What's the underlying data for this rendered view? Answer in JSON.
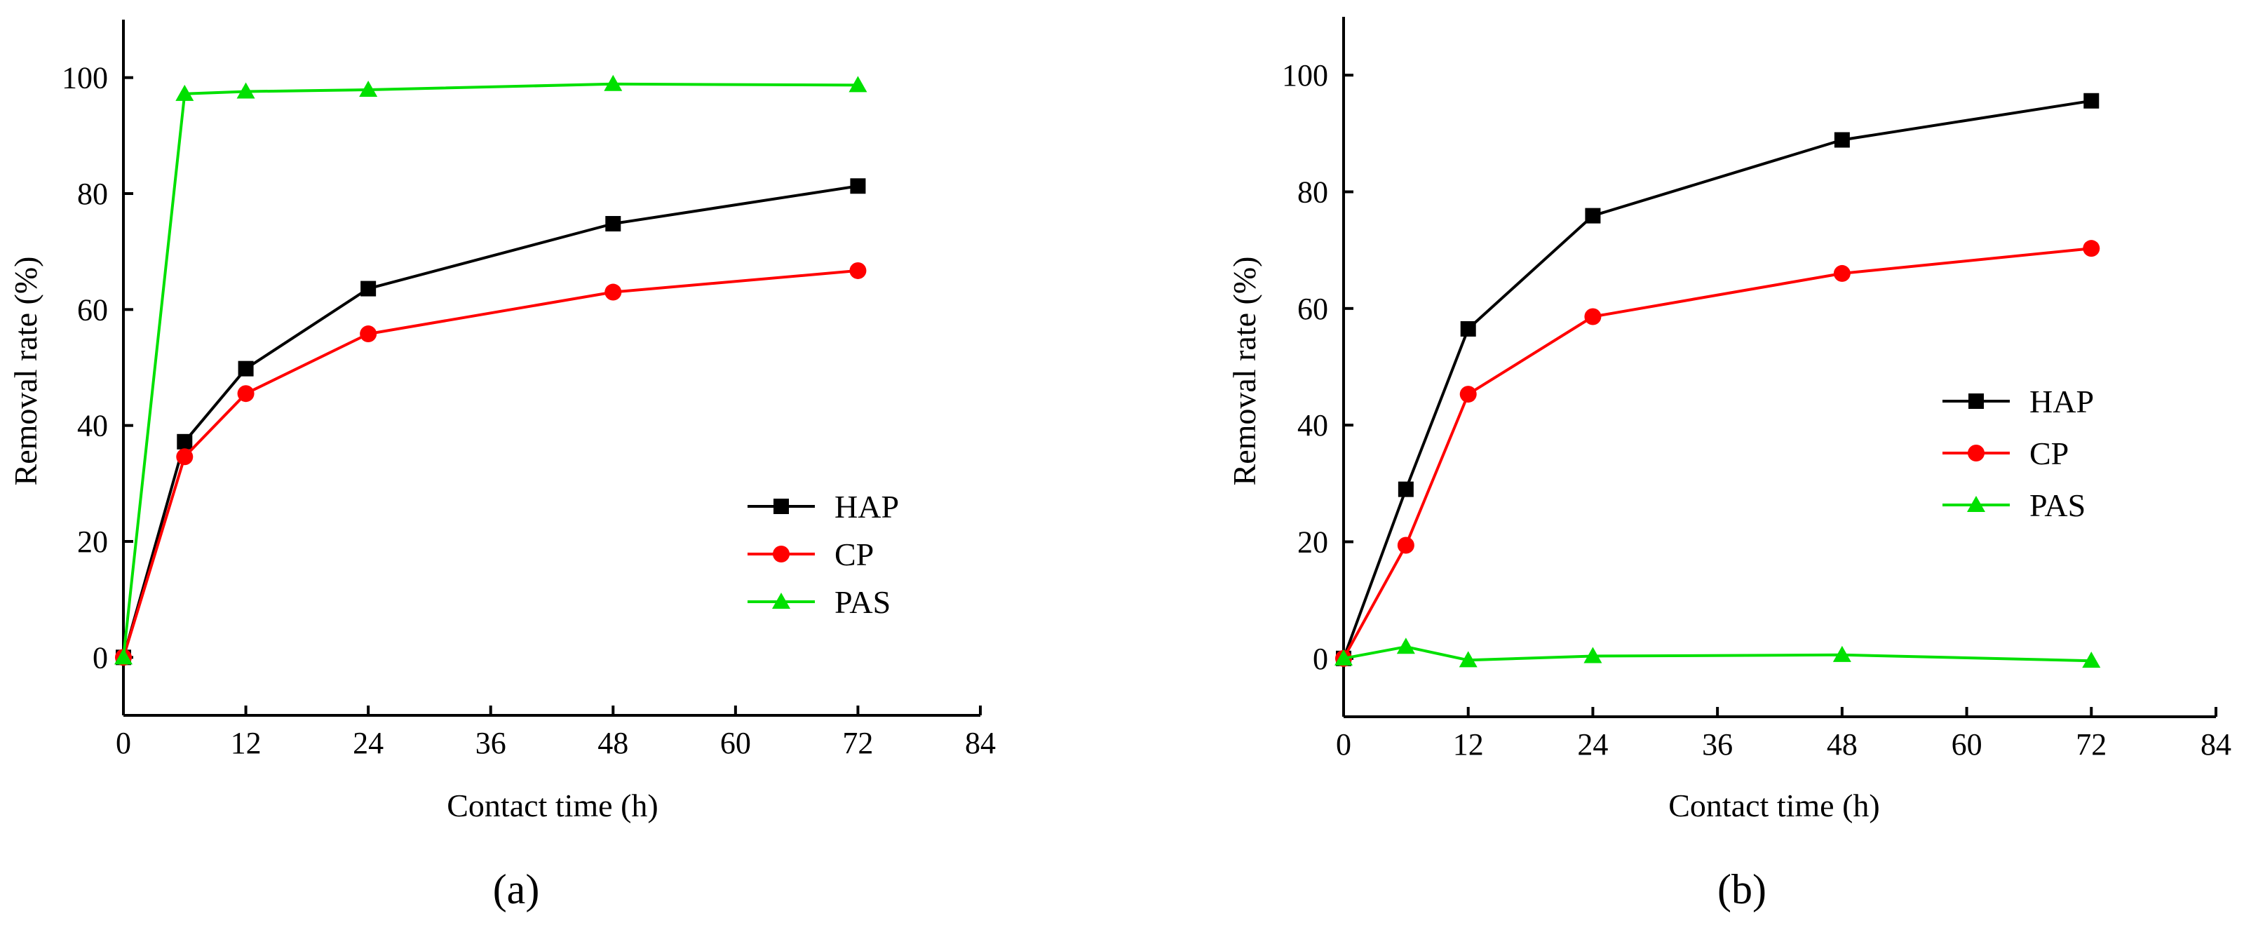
{
  "chart_data": [
    {
      "type": "line",
      "panel_label": "(a)",
      "xlabel": "Contact time (h)",
      "ylabel": "Removal rate (%)",
      "xlim": [
        0,
        84
      ],
      "ylim": [
        -10,
        110
      ],
      "xticks": [
        0,
        12,
        24,
        36,
        48,
        60,
        72,
        84
      ],
      "yticks": [
        0,
        20,
        40,
        60,
        80,
        100
      ],
      "legend_position": "lower-right",
      "series": [
        {
          "name": "HAP",
          "color": "#000000",
          "marker": "square",
          "x": [
            0,
            6,
            12,
            24,
            48,
            72
          ],
          "y": [
            0,
            37.2,
            49.8,
            63.6,
            74.8,
            81.3
          ]
        },
        {
          "name": "CP",
          "color": "#ff0000",
          "marker": "circle",
          "x": [
            0,
            6,
            12,
            24,
            48,
            72
          ],
          "y": [
            0,
            34.6,
            45.5,
            55.8,
            63.0,
            66.7
          ]
        },
        {
          "name": "PAS",
          "color": "#00e000",
          "marker": "triangle",
          "x": [
            0,
            6,
            12,
            24,
            48,
            72
          ],
          "y": [
            0,
            97.2,
            97.6,
            97.9,
            98.9,
            98.7
          ]
        }
      ]
    },
    {
      "type": "line",
      "panel_label": "(b)",
      "xlabel": "Contact time (h)",
      "ylabel": "Removal rate (%)",
      "xlim": [
        0,
        84
      ],
      "ylim": [
        -10,
        110
      ],
      "xticks": [
        0,
        12,
        24,
        36,
        48,
        60,
        72,
        84
      ],
      "yticks": [
        0,
        20,
        40,
        60,
        80,
        100
      ],
      "legend_position": "center-right",
      "series": [
        {
          "name": "HAP",
          "color": "#000000",
          "marker": "square",
          "x": [
            0,
            6,
            12,
            24,
            48,
            72
          ],
          "y": [
            0,
            29.0,
            56.5,
            75.9,
            88.9,
            95.6
          ]
        },
        {
          "name": "CP",
          "color": "#ff0000",
          "marker": "circle",
          "x": [
            0,
            6,
            12,
            24,
            48,
            72
          ],
          "y": [
            0,
            19.4,
            45.3,
            58.6,
            66.0,
            70.3
          ]
        },
        {
          "name": "PAS",
          "color": "#00e000",
          "marker": "triangle",
          "x": [
            0,
            6,
            12,
            24,
            48,
            72
          ],
          "y": [
            0,
            2.0,
            -0.3,
            0.4,
            0.6,
            -0.4
          ]
        }
      ]
    }
  ]
}
